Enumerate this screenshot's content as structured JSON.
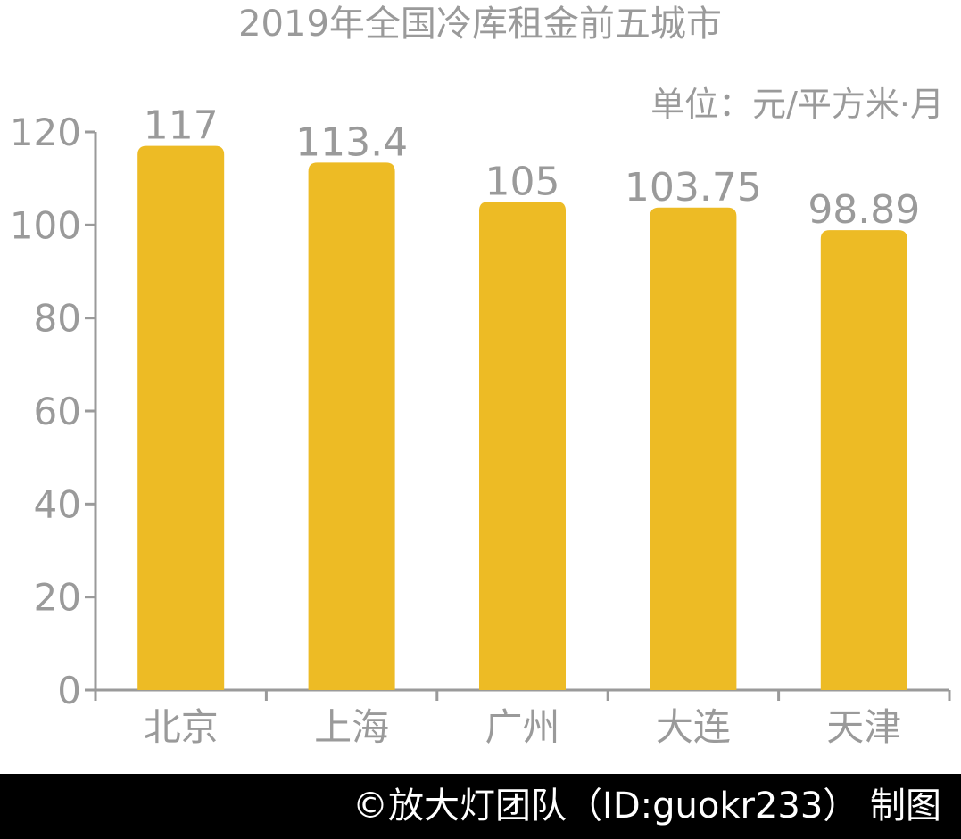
{
  "chart_data": {
    "type": "bar",
    "title": "2019年全国冷库租金前五城市",
    "unit_label": "单位：元/平方米·月",
    "categories": [
      "北京",
      "上海",
      "广州",
      "大连",
      "天津"
    ],
    "values": [
      117,
      113.4,
      105,
      103.75,
      98.89
    ],
    "value_labels": [
      "117",
      "113.4",
      "105",
      "103.75",
      "98.89"
    ],
    "ylim": [
      0,
      120
    ],
    "yticks": [
      0,
      20,
      40,
      60,
      80,
      100,
      120
    ],
    "ytick_labels": [
      "0",
      "20",
      "40",
      "60",
      "80",
      "100",
      "120"
    ],
    "xlabel": "",
    "ylabel": "",
    "bar_color": "#EDBB25",
    "text_color": "#9A9A9A",
    "axis_color": "#9A9A9A",
    "grid": false,
    "legend": "none"
  },
  "footer": {
    "credit": "©放大灯团队（ID:guokr233） 制图",
    "background": "#000000",
    "color": "#FFFFFF"
  }
}
